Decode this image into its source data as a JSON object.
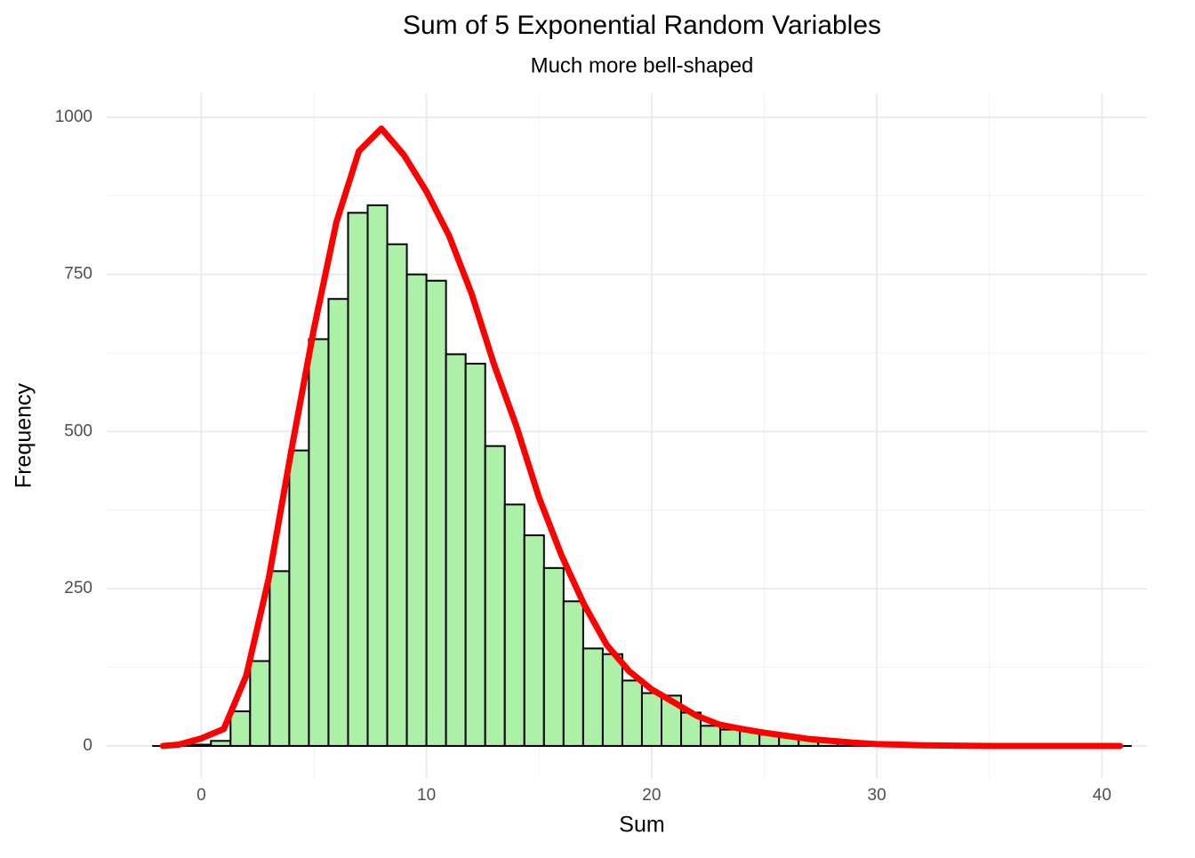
{
  "chart_data": {
    "type": "histogram",
    "title": "Sum of 5 Exponential Random Variables",
    "subtitle": "Much more bell-shaped",
    "x_label": "Sum",
    "y_label": "Frequency",
    "bins": [
      -2.18,
      -1.31,
      -0.44,
      0.43,
      1.3,
      2.17,
      3.04,
      3.91,
      4.78,
      5.65,
      6.52,
      7.39,
      8.26,
      9.13,
      10.0,
      10.87,
      11.74,
      12.61,
      13.48,
      14.35,
      15.22,
      16.09,
      16.96,
      17.83,
      18.7,
      19.57,
      20.44,
      21.31,
      22.18,
      23.05,
      23.92,
      24.79,
      25.66,
      26.53,
      27.4,
      28.27,
      29.14,
      30.01,
      30.88,
      31.75,
      32.62,
      33.49,
      34.36,
      35.23,
      36.1,
      36.97,
      37.84,
      38.71,
      39.58,
      40.45,
      41.32
    ],
    "values": [
      0,
      0,
      2,
      8,
      55,
      135,
      278,
      470,
      647,
      711,
      848,
      860,
      798,
      750,
      740,
      623,
      608,
      477,
      384,
      335,
      283,
      230,
      155,
      146,
      104,
      84,
      80,
      53,
      32,
      26,
      24,
      18,
      14,
      10,
      8,
      5,
      3,
      2,
      1,
      1,
      0,
      1,
      0,
      0,
      0,
      0,
      0,
      0,
      1,
      0
    ],
    "color": "#adf0a8",
    "edge_color": "#000000",
    "density": {
      "color": "#ff0000",
      "x": [
        -1.7,
        -1,
        0,
        1,
        2,
        3,
        4,
        5,
        6,
        7,
        8,
        9,
        10,
        11,
        12,
        13,
        14,
        15,
        16,
        17,
        18,
        19,
        20,
        21,
        22,
        23,
        24,
        25,
        26,
        27,
        28,
        29,
        30,
        32,
        35,
        38,
        40.8
      ],
      "values": [
        0,
        2,
        12,
        27,
        112,
        267,
        470,
        663,
        833,
        946,
        982,
        940,
        882,
        812,
        720,
        607,
        508,
        395,
        303,
        225,
        161,
        119,
        90,
        69,
        48,
        34,
        27,
        21,
        16,
        11,
        8,
        5,
        3,
        1,
        0,
        0,
        0
      ]
    },
    "xlim": [
      -4.2,
      42.0
    ],
    "ylim": [
      -51,
      1038
    ],
    "xticks": [
      0,
      10,
      20,
      30,
      40
    ],
    "yticks": [
      0,
      250,
      500,
      750,
      1000
    ],
    "minor_xticks": [
      5,
      15,
      25,
      35
    ],
    "minor_yticks": [
      125,
      375,
      625,
      875
    ],
    "grid": true
  }
}
